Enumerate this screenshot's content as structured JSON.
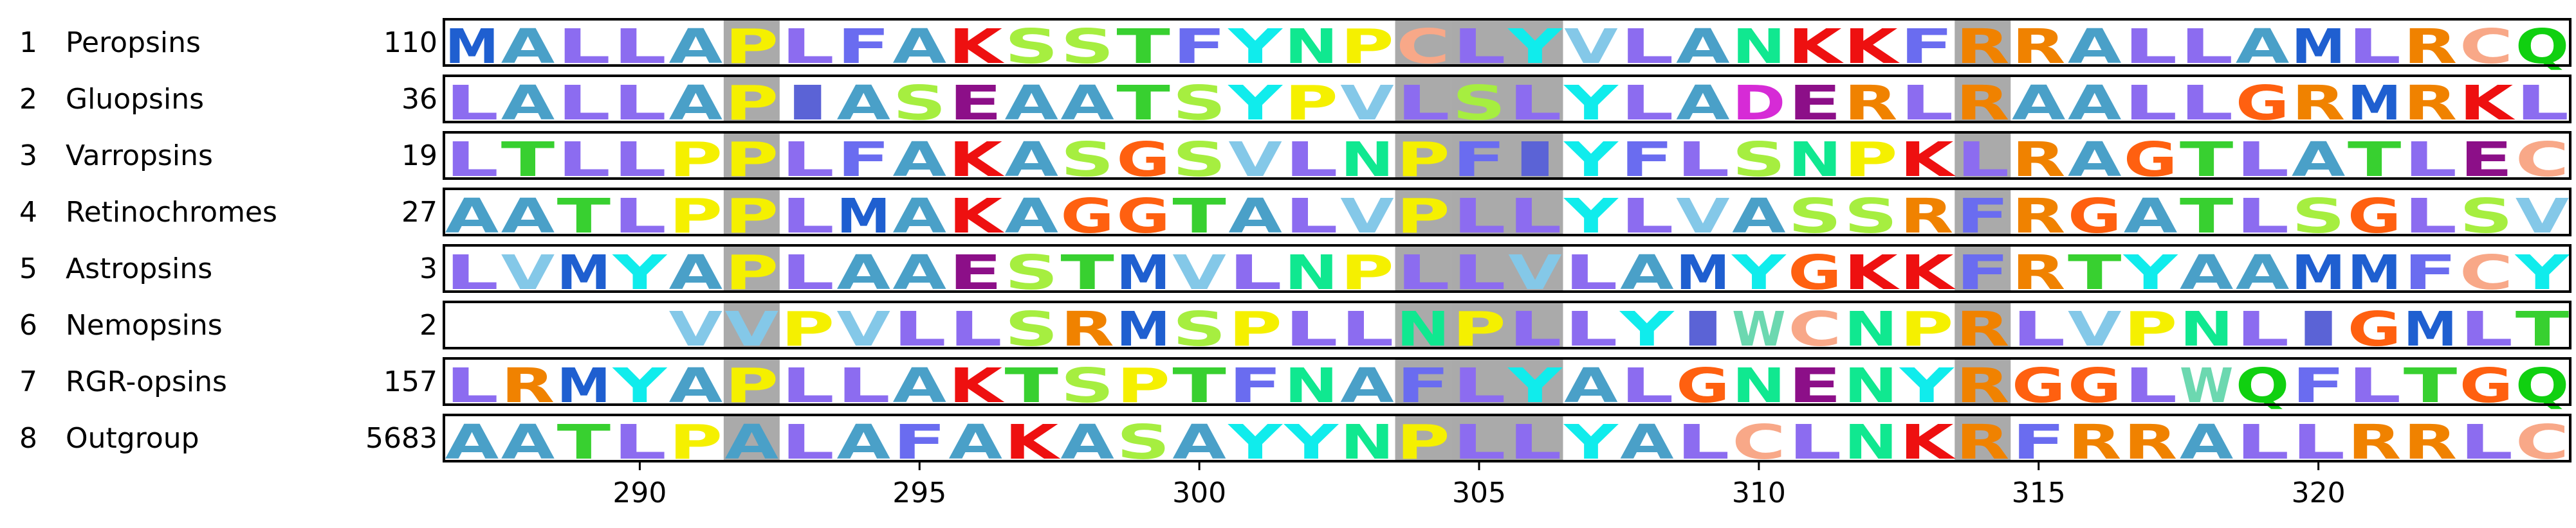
{
  "figure": {
    "rows": [
      {
        "index": "1",
        "name": "Peropsins",
        "count": "110",
        "seq": "MALLAPLFAKSSTFYNPCLYVLANKKFRRALLAMLRCQ"
      },
      {
        "index": "2",
        "name": "Gluopsins",
        "count": "36",
        "seq": "LALLAPIASEAATSYPVLSLYLADERLRAALLGRMRKL"
      },
      {
        "index": "3",
        "name": "Varropsins",
        "count": "19",
        "seq": "LTLLPPLFAKASGSVLNPFIYFLSNPKLRAGTLATLEC"
      },
      {
        "index": "4",
        "name": "Retinochromes",
        "count": "27",
        "seq": "AATLPPLMAKAGGTALVPLLYLVASSRFRGATLSGLSV"
      },
      {
        "index": "5",
        "name": "Astropsins",
        "count": "3",
        "seq": "LVMYAPLAAESTMVLNPLLVLAMYGKKFRTYAAMMFCY"
      },
      {
        "index": "6",
        "name": "Nemopsins",
        "count": "2",
        "seq": "    VVPVLLSRMSPLLNPLLYIWCNPRLVPNLIGMLTPR"
      },
      {
        "index": "7",
        "name": "RGR-opsins",
        "count": "157",
        "seq": "LRMYAPLLAKTSPTFNAFLYALGNENYRGGLWQFLTGQ"
      },
      {
        "index": "8",
        "name": "Outgroup",
        "count": "5683",
        "seq": "AATLPALAFAKASAYYNPLLYALCLNKRFRRALLRRLC"
      }
    ],
    "axis": {
      "ticks": [
        "290",
        "295",
        "300",
        "305",
        "310",
        "315",
        "320"
      ]
    }
  },
  "chart_data": {
    "type": "sequence-logo",
    "x_range": [
      287,
      324
    ],
    "x_ticks": [
      290,
      295,
      300,
      305,
      310,
      315,
      320
    ],
    "shaded_columns": [
      292,
      304,
      305,
      306,
      314
    ],
    "residue_colors": {
      "M": "#1f5fd0",
      "A": "#4aa0c8",
      "L": "#8c6cf0",
      "I": "#5b63d6",
      "V": "#84c8e8",
      "P": "#f5f000",
      "F": "#6a6cf0",
      "K": "#ee1010",
      "R": "#f08200",
      "S": "#a6ee40",
      "T": "#38d030",
      "Y": "#10ecec",
      "N": "#10e890",
      "C": "#f8a888",
      "Q": "#10d010",
      "G": "#ff6010",
      "E": "#8c0f88",
      "D": "#d62bd6",
      "W": "#6cd8b0",
      "H": "#5a8ad8"
    },
    "grid_color": "#aaaaaa"
  }
}
